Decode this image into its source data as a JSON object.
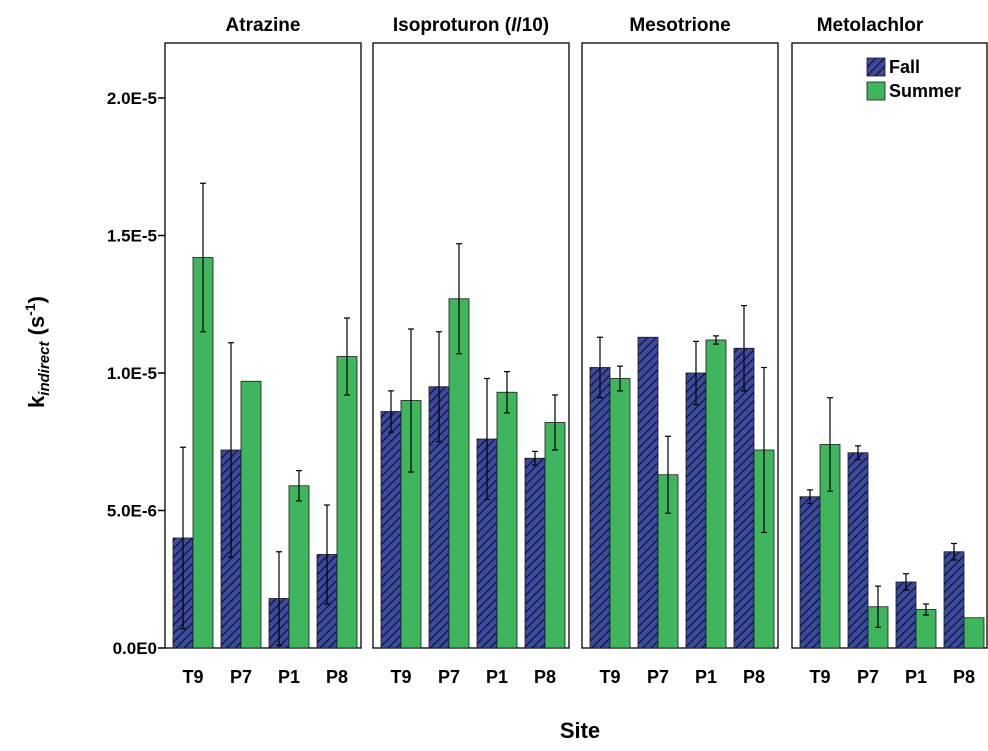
{
  "chart_data": {
    "type": "bar",
    "xlabel": "Site",
    "ylabel": {
      "base": "k",
      "subscript": "indirect",
      "unit_prefix": " (s",
      "unit_sup": "-1",
      "unit_suffix": ")"
    },
    "ylim": [
      0,
      2.2e-05
    ],
    "yticks": [
      {
        "value": 0,
        "label": "0.0E0"
      },
      {
        "value": 5e-06,
        "label": "5.0E-6"
      },
      {
        "value": 1e-05,
        "label": "1.0E-5"
      },
      {
        "value": 1.5e-05,
        "label": "1.5E-5"
      },
      {
        "value": 2e-05,
        "label": "2.0E-5"
      }
    ],
    "categories": [
      "T9",
      "P7",
      "P1",
      "P8"
    ],
    "legend": {
      "position": "top-right",
      "entries": [
        "Fall",
        "Summer"
      ]
    },
    "colors": {
      "fall_fill": "#3b4a9c",
      "fall_hatch": "#0a0a2a",
      "summer": "#3fb55e"
    },
    "panels": [
      {
        "title": "Atrazine",
        "series": [
          {
            "name": "Fall",
            "values": [
              4e-06,
              7.2e-06,
              1.8e-06,
              3.4e-06
            ],
            "err": [
              3.3e-06,
              3.9e-06,
              1.7e-06,
              1.8e-06
            ]
          },
          {
            "name": "Summer",
            "values": [
              1.42e-05,
              9.7e-06,
              5.9e-06,
              1.06e-05
            ],
            "err": [
              2.7e-06,
              0,
              5.5e-07,
              1.4e-06
            ]
          }
        ]
      },
      {
        "title": "Isoproturon (/10)",
        "title_parts": {
          "pre": "Isoproturon (",
          "italic": "I",
          "post": "/10)"
        },
        "series": [
          {
            "name": "Fall",
            "values": [
              8.6e-06,
              9.5e-06,
              7.6e-06,
              6.9e-06
            ],
            "err": [
              7.5e-07,
              2e-06,
              2.2e-06,
              2.5e-07
            ]
          },
          {
            "name": "Summer",
            "values": [
              9e-06,
              1.27e-05,
              9.3e-06,
              8.2e-06
            ],
            "err": [
              2.6e-06,
              2e-06,
              7.5e-07,
              1e-06
            ]
          }
        ]
      },
      {
        "title": "Mesotrione",
        "series": [
          {
            "name": "Fall",
            "values": [
              1.02e-05,
              1.13e-05,
              1e-05,
              1.09e-05
            ],
            "err": [
              1.1e-06,
              0,
              1.15e-06,
              1.55e-06
            ]
          },
          {
            "name": "Summer",
            "values": [
              9.8e-06,
              6.3e-06,
              1.12e-05,
              7.2e-06
            ],
            "err": [
              4.5e-07,
              1.4e-06,
              1.5e-07,
              3e-06
            ]
          }
        ]
      },
      {
        "title": "Metolachlor",
        "series": [
          {
            "name": "Fall",
            "values": [
              5.5e-06,
              7.1e-06,
              2.4e-06,
              3.5e-06
            ],
            "err": [
              2.5e-07,
              2.5e-07,
              3e-07,
              3e-07
            ]
          },
          {
            "name": "Summer",
            "values": [
              7.4e-06,
              1.5e-06,
              1.4e-06,
              1.1e-06
            ],
            "err": [
              1.7e-06,
              7.5e-07,
              2e-07,
              0
            ]
          }
        ]
      }
    ]
  }
}
